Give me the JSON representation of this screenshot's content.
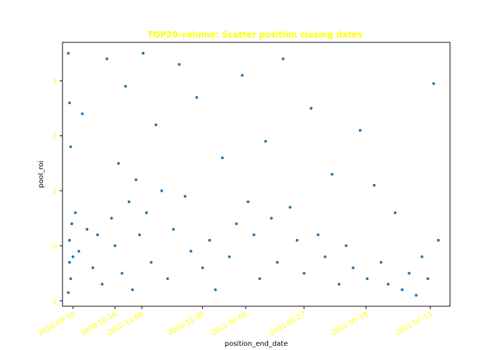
{
  "chart_data": {
    "type": "scatter",
    "title": "TOP20-volume: Scatter position closing dates",
    "xlabel": "position_end_date",
    "ylabel": "pool_roi",
    "ylim": [
      -1.1,
      3.7
    ],
    "xlim": [
      "2020-09-01",
      "2021-07-30"
    ],
    "grid": false,
    "legend": "none",
    "x_ticks": [
      "2020-09-10",
      "2020-10-16",
      "2020-11-08",
      "2020-12-30",
      "2021-02-05",
      "2021-03-27",
      "2021-05-19",
      "2021-07-13"
    ],
    "y_ticks": [
      -1,
      0,
      1,
      2,
      3
    ],
    "series": [
      {
        "color": "#1f77b4",
        "x": [
          "2020-09-06",
          "2020-09-06",
          "2020-09-07",
          "2020-09-07",
          "2020-09-07",
          "2020-09-08",
          "2020-09-08",
          "2020-09-09",
          "2020-09-10",
          "2020-09-12",
          "2020-09-15",
          "2020-09-18",
          "2020-09-22",
          "2020-09-27",
          "2020-10-01",
          "2020-10-05",
          "2020-10-09",
          "2020-10-13",
          "2020-10-16",
          "2020-10-19",
          "2020-10-22",
          "2020-10-25",
          "2020-10-28",
          "2020-10-31",
          "2020-11-03",
          "2020-11-06",
          "2020-11-09",
          "2020-11-12",
          "2020-11-16",
          "2020-11-20",
          "2020-11-25",
          "2020-11-30",
          "2020-12-05",
          "2020-12-10",
          "2020-12-15",
          "2020-12-20",
          "2020-12-25",
          "2020-12-30",
          "2021-01-05",
          "2021-01-10",
          "2021-01-16",
          "2021-01-22",
          "2021-01-28",
          "2021-02-02",
          "2021-02-07",
          "2021-02-12",
          "2021-02-17",
          "2021-02-22",
          "2021-02-27",
          "2021-03-04",
          "2021-03-09",
          "2021-03-15",
          "2021-03-21",
          "2021-03-27",
          "2021-04-02",
          "2021-04-08",
          "2021-04-14",
          "2021-04-20",
          "2021-04-26",
          "2021-05-02",
          "2021-05-08",
          "2021-05-14",
          "2021-05-20",
          "2021-05-26",
          "2021-06-01",
          "2021-06-07",
          "2021-06-13",
          "2021-06-19",
          "2021-06-25",
          "2021-07-01",
          "2021-07-06",
          "2021-07-11",
          "2021-07-16",
          "2021-07-20"
        ],
        "y": [
          3.5,
          -0.85,
          2.6,
          0.1,
          -0.3,
          1.8,
          -0.6,
          0.4,
          -0.2,
          0.6,
          -0.1,
          2.4,
          0.3,
          -0.4,
          0.2,
          -0.7,
          3.4,
          0.5,
          0.0,
          1.5,
          -0.5,
          2.9,
          0.8,
          -0.8,
          1.2,
          0.2,
          3.5,
          0.6,
          -0.3,
          2.2,
          1.0,
          -0.6,
          0.3,
          3.3,
          0.9,
          -0.1,
          2.7,
          -0.4,
          0.1,
          -0.8,
          1.6,
          -0.2,
          0.4,
          3.1,
          0.8,
          0.2,
          -0.6,
          1.9,
          0.5,
          -0.3,
          3.4,
          0.7,
          0.1,
          -0.5,
          2.5,
          0.2,
          -0.2,
          1.3,
          -0.7,
          0.0,
          -0.4,
          2.1,
          -0.6,
          1.1,
          -0.3,
          -0.7,
          0.6,
          -0.8,
          -0.5,
          -0.9,
          -0.2,
          -0.6,
          2.95,
          0.1
        ]
      }
    ]
  }
}
